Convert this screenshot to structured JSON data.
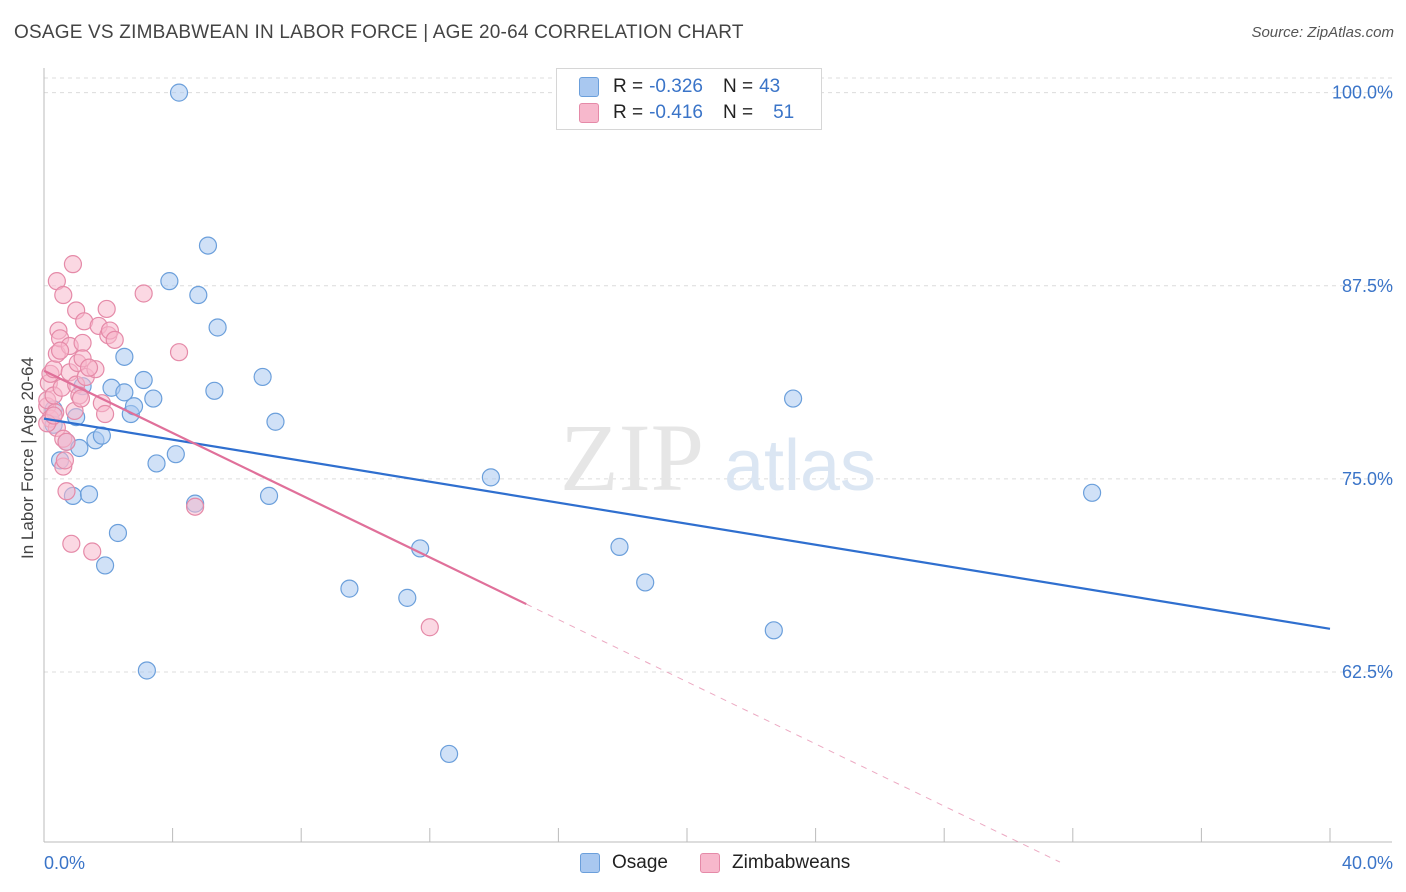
{
  "title": "OSAGE VS ZIMBABWEAN IN LABOR FORCE | AGE 20-64 CORRELATION CHART",
  "source": "Source: ZipAtlas.com",
  "watermark": {
    "zip": "ZIP",
    "atlas": "atlas"
  },
  "legend": {
    "osage": {
      "r_label": "R =",
      "r_value": "-0.326",
      "n_label": "N =",
      "n_value": "43"
    },
    "zimbabwean": {
      "r_label": "R =",
      "r_value": "-0.416",
      "n_label": "N =",
      "n_value": "51"
    }
  },
  "bottom_legend": {
    "osage": "Osage",
    "zimbabwean": "Zimbabweans"
  },
  "colors": {
    "osage_fill": "#a9c8f0",
    "osage_stroke": "#6b9fdb",
    "osage_line": "#2f6fcf",
    "zim_fill": "#f7b8cc",
    "zim_stroke": "#e58aa8",
    "zim_line": "#e0709a",
    "axis_label": "#3a74c8",
    "grid": "#dcdcdc"
  },
  "chart_data": {
    "type": "scatter",
    "title": "OSAGE VS ZIMBABWEAN IN LABOR FORCE | AGE 20-64 CORRELATION CHART",
    "xlabel": "",
    "ylabel": "In Labor Force | Age 20-64",
    "xlim": [
      0,
      40
    ],
    "ylim": [
      51.5,
      102.5
    ],
    "x_tick_labels": [
      "0.0%",
      "40.0%"
    ],
    "y_ticks": [
      62.5,
      75.0,
      87.5,
      100.0
    ],
    "y_tick_labels": [
      "62.5%",
      "75.0%",
      "87.5%",
      "100.0%"
    ],
    "grid": "horizontal dashed",
    "legend_position": "top-center",
    "series": [
      {
        "name": "Osage",
        "points": [
          [
            0.3,
            79.5
          ],
          [
            0.3,
            78.5
          ],
          [
            0.5,
            76.2
          ],
          [
            0.7,
            77.4
          ],
          [
            0.9,
            73.9
          ],
          [
            1.0,
            79.0
          ],
          [
            1.1,
            77.0
          ],
          [
            1.2,
            81.0
          ],
          [
            1.4,
            74.0
          ],
          [
            1.6,
            77.5
          ],
          [
            1.8,
            77.8
          ],
          [
            1.9,
            69.4
          ],
          [
            2.1,
            80.9
          ],
          [
            2.3,
            71.5
          ],
          [
            2.5,
            80.6
          ],
          [
            2.5,
            82.9
          ],
          [
            2.7,
            79.2
          ],
          [
            2.8,
            79.7
          ],
          [
            3.1,
            81.4
          ],
          [
            3.2,
            62.6
          ],
          [
            3.4,
            80.2
          ],
          [
            3.5,
            76.0
          ],
          [
            3.9,
            87.8
          ],
          [
            4.1,
            76.6
          ],
          [
            4.2,
            100.0
          ],
          [
            4.7,
            73.4
          ],
          [
            4.8,
            86.9
          ],
          [
            5.1,
            90.1
          ],
          [
            5.3,
            80.7
          ],
          [
            5.4,
            84.8
          ],
          [
            6.8,
            81.6
          ],
          [
            7.0,
            73.9
          ],
          [
            7.2,
            78.7
          ],
          [
            9.5,
            67.9
          ],
          [
            11.3,
            67.3
          ],
          [
            11.7,
            70.5
          ],
          [
            12.6,
            57.2
          ],
          [
            13.9,
            75.1
          ],
          [
            17.9,
            70.6
          ],
          [
            18.7,
            68.3
          ],
          [
            22.7,
            65.2
          ],
          [
            23.3,
            80.2
          ],
          [
            32.6,
            74.1
          ]
        ]
      },
      {
        "name": "Zimbabweans",
        "points": [
          [
            0.1,
            79.7
          ],
          [
            0.1,
            80.1
          ],
          [
            0.15,
            81.2
          ],
          [
            0.2,
            78.9
          ],
          [
            0.2,
            81.8
          ],
          [
            0.3,
            80.4
          ],
          [
            0.3,
            82.1
          ],
          [
            0.35,
            79.3
          ],
          [
            0.4,
            87.8
          ],
          [
            0.4,
            78.3
          ],
          [
            0.4,
            83.1
          ],
          [
            0.45,
            84.6
          ],
          [
            0.5,
            84.1
          ],
          [
            0.55,
            80.9
          ],
          [
            0.6,
            86.9
          ],
          [
            0.6,
            77.6
          ],
          [
            0.6,
            75.8
          ],
          [
            0.65,
            76.2
          ],
          [
            0.7,
            74.2
          ],
          [
            0.8,
            83.6
          ],
          [
            0.8,
            81.9
          ],
          [
            0.85,
            70.8
          ],
          [
            0.9,
            88.9
          ],
          [
            0.95,
            79.4
          ],
          [
            1.0,
            81.1
          ],
          [
            1.0,
            85.9
          ],
          [
            1.05,
            82.5
          ],
          [
            1.1,
            80.4
          ],
          [
            1.15,
            80.2
          ],
          [
            1.2,
            83.8
          ],
          [
            1.2,
            82.8
          ],
          [
            1.25,
            85.2
          ],
          [
            1.3,
            81.6
          ],
          [
            1.5,
            70.3
          ],
          [
            1.6,
            82.1
          ],
          [
            1.7,
            84.9
          ],
          [
            1.8,
            79.9
          ],
          [
            1.9,
            79.2
          ],
          [
            1.95,
            86.0
          ],
          [
            2.0,
            84.3
          ],
          [
            2.05,
            84.6
          ],
          [
            2.2,
            84.0
          ],
          [
            3.1,
            87.0
          ],
          [
            4.2,
            83.2
          ],
          [
            4.7,
            73.2
          ],
          [
            12.0,
            65.4
          ],
          [
            0.1,
            78.6
          ],
          [
            0.7,
            77.4
          ],
          [
            1.4,
            82.2
          ],
          [
            0.5,
            83.3
          ],
          [
            0.3,
            79.1
          ]
        ]
      }
    ],
    "trend_lines": [
      {
        "name": "Osage",
        "x": [
          0,
          40
        ],
        "y": [
          78.9,
          65.3
        ],
        "style": "solid"
      },
      {
        "name": "Zimbabweans",
        "x": [
          0,
          15
        ],
        "y": [
          82.0,
          66.9
        ],
        "style": "solid"
      },
      {
        "name": "Zimbabweans",
        "x": [
          15,
          31.6
        ],
        "y": [
          66.9,
          50.2
        ],
        "style": "dashed"
      }
    ]
  }
}
